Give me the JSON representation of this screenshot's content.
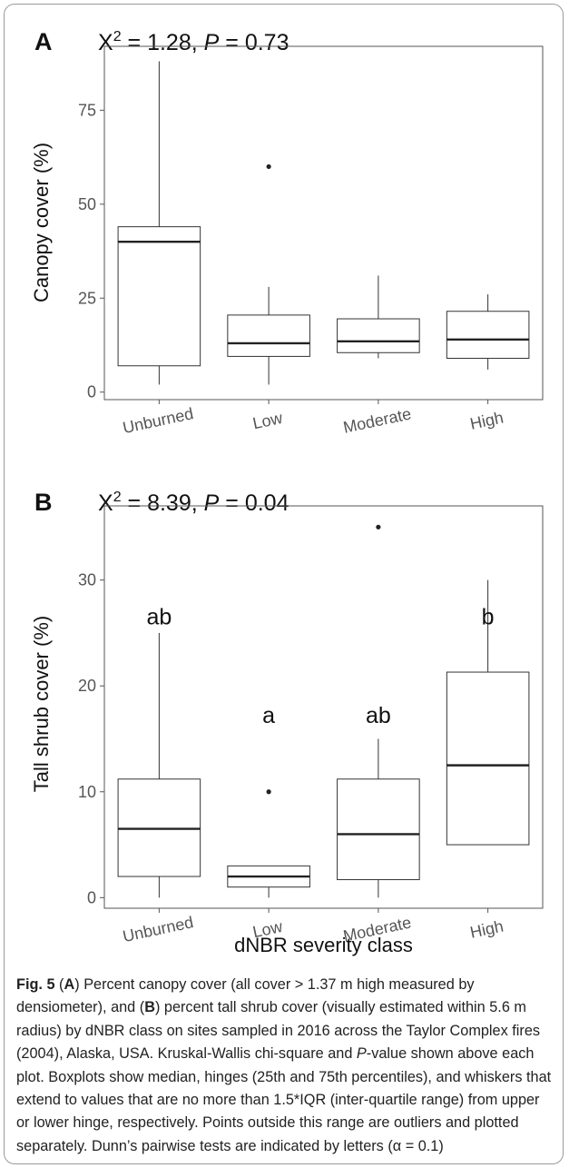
{
  "chart_data": [
    {
      "type": "boxplot",
      "panel": "A",
      "stat_prefix": "X",
      "stat_sup": "2",
      "stat_value": " = 1.28, ",
      "p_label": "P",
      "p_value": " = 0.73",
      "ylabel": "Canopy cover (%)",
      "ylim": [
        -2,
        92
      ],
      "yticks": [
        0,
        25,
        50,
        75
      ],
      "categories": [
        "Unburned",
        "Low",
        "Moderate",
        "High"
      ],
      "boxes": [
        {
          "min": 2,
          "q1": 7,
          "median": 40,
          "q3": 44,
          "max": 88,
          "outliers": [],
          "letter": ""
        },
        {
          "min": 2,
          "q1": 9.5,
          "median": 13,
          "q3": 20.5,
          "max": 28,
          "outliers": [
            60
          ],
          "letter": ""
        },
        {
          "min": 9,
          "q1": 10.5,
          "median": 13.5,
          "q3": 19.5,
          "max": 31,
          "outliers": [],
          "letter": ""
        },
        {
          "min": 6,
          "q1": 9,
          "median": 14,
          "q3": 21.5,
          "max": 26,
          "outliers": [],
          "letter": ""
        }
      ]
    },
    {
      "type": "boxplot",
      "panel": "B",
      "stat_prefix": "X",
      "stat_sup": "2",
      "stat_value": " = 8.39, ",
      "p_label": "P",
      "p_value": " = 0.04",
      "ylabel": "Tall shrub cover (%)",
      "ylim": [
        -1,
        37
      ],
      "yticks": [
        0,
        10,
        20,
        30
      ],
      "categories": [
        "Unburned",
        "Low",
        "Moderate",
        "High"
      ],
      "xlabel": "dNBR severity class",
      "boxes": [
        {
          "min": 0,
          "q1": 2,
          "median": 6.5,
          "q3": 11.2,
          "max": 25,
          "outliers": [],
          "letter": "ab",
          "letter_y": 26.5
        },
        {
          "min": 0,
          "q1": 1,
          "median": 2,
          "q3": 3,
          "max": 3,
          "outliers": [
            10
          ],
          "letter": "a",
          "letter_y": 17.2
        },
        {
          "min": 0,
          "q1": 1.7,
          "median": 6,
          "q3": 11.2,
          "max": 15,
          "outliers": [
            35
          ],
          "letter": "ab",
          "letter_y": 17.2
        },
        {
          "min": 5,
          "q1": 5,
          "median": 12.5,
          "q3": 21.3,
          "max": 30,
          "outliers": [],
          "letter": "b",
          "letter_y": 26.5
        }
      ]
    }
  ],
  "caption": {
    "fig_label": "Fig. 5",
    "t1": " (",
    "a": "A",
    "t2": ") Percent canopy cover (all cover > 1.37 m high measured by densiometer), and (",
    "b": "B",
    "t3": ") percent tall shrub cover (visually estimated within 5.6 m radius) by dNBR class on sites sampled in 2016 across the Taylor Complex fires (2004), Alaska, USA. Kruskal-Wallis chi-square and ",
    "p": "P",
    "t4": "-value shown above each plot. Boxplots show median, hinges (25th and 75th percentiles), and whiskers that extend to values that are no more than 1.5*IQR (inter-quartile range) from upper or lower hinge, respectively. Points outside this range are outliers and plotted separately. Dunn’s pairwise tests are indicated by letters (α = 0.1)"
  }
}
